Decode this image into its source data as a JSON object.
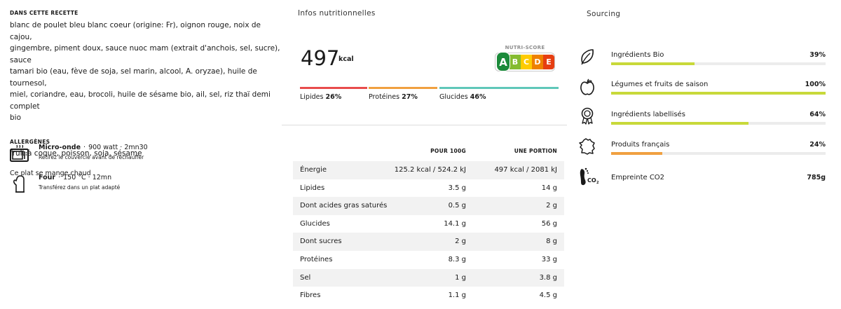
{
  "recipe": {
    "ingredients_heading": "Dans cette recette",
    "ingredients_lines": [
      "blanc de poulet bleu blanc coeur (origine: Fr), oignon rouge, noix de cajou,",
      "gingembre, piment doux, sauce nuoc mam (extrait d'anchois, sel, sucre), sauce",
      "tamari bio (eau, fève de soja, sel marin, alcool, A. oryzae), huile de tournesol,",
      "miel, coriandre, eau, brocoli, huile de sésame bio, ail, sel, riz thaï demi complet",
      "bio"
    ],
    "allergens_heading": "Allergènes",
    "allergens": "fruit à coque, poisson, soja, sésame",
    "serving_note": "Ce plat se mange chaud",
    "prep": [
      {
        "icon": "microwave-icon",
        "title": "Micro-onde",
        "separator": "·",
        "detail": "900 watt · 2mn30",
        "instruction": "Retirez le couvercle avant de réchauffer"
      },
      {
        "icon": "oven-mitt-icon",
        "title": "Four",
        "separator": "·",
        "detail": "150 °C · 12mn",
        "instruction": "Transférez dans un plat adapté"
      }
    ]
  },
  "nutrition": {
    "title": "Infos nutritionnelles",
    "kcal_value": "497",
    "kcal_unit": "kcal",
    "nutri_score": {
      "label": "NUTRI-SCORE",
      "grades": [
        "A",
        "B",
        "C",
        "D",
        "E"
      ],
      "selected": "A",
      "colors": [
        "#1b8a3a",
        "#85bb2f",
        "#fecb02",
        "#ee8100",
        "#e63e11"
      ]
    },
    "macros": [
      {
        "name": "Lipides",
        "percent": "26%",
        "color": "#e84c4c"
      },
      {
        "name": "Protéines",
        "percent": "27%",
        "color": "#f0a040"
      },
      {
        "name": "Glucides",
        "percent": "46%",
        "color": "#5fc7b9"
      }
    ],
    "table": {
      "headers": [
        "",
        "Pour 100g",
        "Une portion"
      ],
      "rows": [
        [
          "Énergie",
          "125.2 kcal / 524.2 kJ",
          "497 kcal / 2081 kJ"
        ],
        [
          "Lipides",
          "3.5 g",
          "14 g"
        ],
        [
          "Dont acides gras saturés",
          "0.5 g",
          "2 g"
        ],
        [
          "Glucides",
          "14.1 g",
          "56 g"
        ],
        [
          "Dont sucres",
          "2 g",
          "8 g"
        ],
        [
          "Protéines",
          "8.3 g",
          "33 g"
        ],
        [
          "Sel",
          "1 g",
          "3.8 g"
        ],
        [
          "Fibres",
          "1.1 g",
          "4.5 g"
        ]
      ]
    }
  },
  "sourcing": {
    "title": "Sourcing",
    "items": [
      {
        "icon": "leaf-icon",
        "label": "Ingrédients Bio",
        "value": "39%",
        "fraction": 0.39,
        "bar_color": "#c8d93a",
        "has_bar": true
      },
      {
        "icon": "apple-icon",
        "label": "Légumes et fruits de saison",
        "value": "100%",
        "fraction": 1.0,
        "bar_color": "#c8d93a",
        "has_bar": true
      },
      {
        "icon": "award-ribbon-icon",
        "label": "Ingrédients labellisés",
        "value": "64%",
        "fraction": 0.64,
        "bar_color": "#c8d93a",
        "has_bar": true
      },
      {
        "icon": "france-map-icon",
        "label": "Produits français",
        "value": "24%",
        "fraction": 0.24,
        "bar_color": "#f0a040",
        "has_bar": true
      },
      {
        "icon": "co2-footprint-icon",
        "label": "Empreinte CO2",
        "value": "785g",
        "has_bar": false
      }
    ]
  }
}
